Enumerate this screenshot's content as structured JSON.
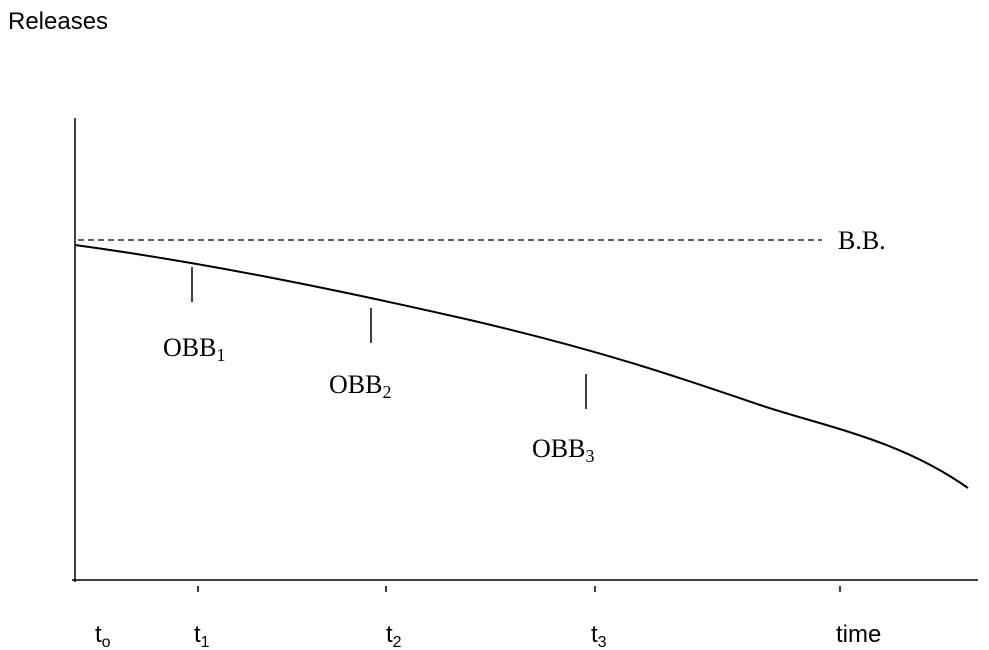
{
  "diagram": {
    "ylabel": "Releases",
    "baseline_label": "B.B.",
    "x_ticks": [
      {
        "base": "t",
        "sub": "o"
      },
      {
        "base": "t",
        "sub": "1"
      },
      {
        "base": "t",
        "sub": "2"
      },
      {
        "base": "t",
        "sub": "3"
      },
      {
        "base": "time",
        "sub": ""
      }
    ],
    "markers": [
      {
        "base": "OBB",
        "sub": "1"
      },
      {
        "base": "OBB",
        "sub": "2"
      },
      {
        "base": "OBB",
        "sub": "3"
      }
    ]
  }
}
